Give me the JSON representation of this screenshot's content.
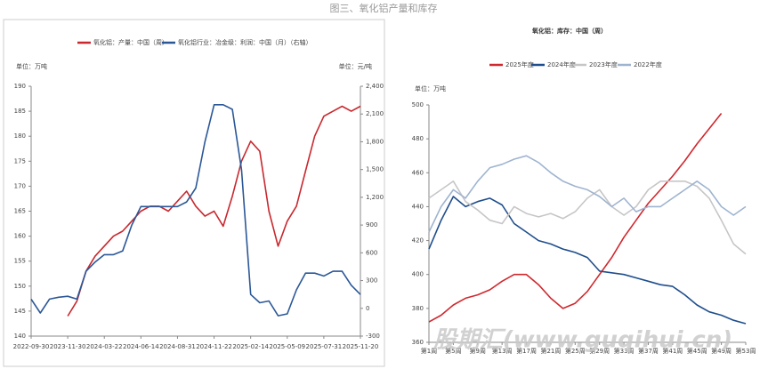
{
  "title": "图三、氧化铝产量和库存",
  "watermark": "股期汇(www.guqihui.cn)",
  "chart_data": [
    {
      "type": "line",
      "y_label": "单位：万吨",
      "y2_label": "单位：元/吨",
      "categories": [
        "2022-09-30",
        null,
        null,
        null,
        "2023-11-30",
        null,
        null,
        null,
        "2024-03-22",
        null,
        null,
        null,
        "2024-06-14",
        null,
        null,
        null,
        "2024-08-31",
        null,
        null,
        null,
        "2024-11-22",
        null,
        null,
        null,
        "2025-02-14",
        null,
        null,
        null,
        "2025-05-09",
        null,
        null,
        null,
        "2025-07-31",
        null,
        null,
        null,
        "2025-11-20"
      ],
      "series": [
        {
          "name": "氧化铝：产量：中国（周）",
          "color": "#c8282e",
          "values": [
            null,
            null,
            null,
            null,
            144,
            147,
            153,
            156,
            158,
            160,
            161,
            163,
            165,
            166,
            166,
            165,
            167,
            169,
            166,
            164,
            165,
            162,
            168,
            175,
            179,
            177,
            165,
            158,
            163,
            166,
            173,
            180,
            184,
            185,
            186,
            185,
            186
          ]
        },
        {
          "name": "氧化铝行业：冶金级：利润：中国（月）（右轴）",
          "color": "#2b5797",
          "axis": "y2",
          "values": [
            100,
            -50,
            100,
            120,
            130,
            100,
            400,
            500,
            580,
            580,
            620,
            900,
            1100,
            1100,
            1100,
            1100,
            1100,
            1150,
            1300,
            1800,
            2200,
            2200,
            2150,
            1500,
            150,
            60,
            80,
            -80,
            -60,
            200,
            380,
            380,
            350,
            400,
            400,
            250,
            150
          ]
        }
      ],
      "ylim": [
        140,
        190
      ],
      "yticks": [
        140,
        145,
        150,
        155,
        160,
        165,
        170,
        175,
        180,
        185,
        190
      ],
      "y2lim": [
        -300,
        2400
      ],
      "y2ticks": [
        -300,
        0,
        300,
        600,
        900,
        {
          "value": 1200,
          "label": "1,200"
        },
        {
          "value": 1500,
          "label": "1,500"
        },
        {
          "value": 1800,
          "label": "1,800"
        },
        {
          "value": 2100,
          "label": "2,100"
        },
        {
          "value": 2400,
          "label": "2,400"
        }
      ]
    },
    {
      "type": "line",
      "title": "氧化铝：库存：中国（周）",
      "y_label": "单位：万吨",
      "x": [
        1,
        3,
        5,
        7,
        9,
        11,
        13,
        15,
        17,
        19,
        21,
        23,
        25,
        27,
        29,
        31,
        33,
        35,
        37,
        39,
        41,
        43,
        45,
        47,
        49,
        51,
        53
      ],
      "xlim": [
        1,
        53
      ],
      "xticks": [
        {
          "value": 1,
          "label": "第1周"
        },
        {
          "value": 5,
          "label": "第5周"
        },
        {
          "value": 9,
          "label": "第9周"
        },
        {
          "value": 13,
          "label": "第13周"
        },
        {
          "value": 17,
          "label": "第17周"
        },
        {
          "value": 21,
          "label": "第21周"
        },
        {
          "value": 25,
          "label": "第25周"
        },
        {
          "value": 29,
          "label": "第29周"
        },
        {
          "value": 33,
          "label": "第33周"
        },
        {
          "value": 37,
          "label": "第37周"
        },
        {
          "value": 41,
          "label": "第41周"
        },
        {
          "value": 45,
          "label": "第45周"
        },
        {
          "value": 49,
          "label": "第49周"
        },
        {
          "value": 53,
          "label": "第53周"
        }
      ],
      "series": [
        {
          "name": "2025年度",
          "color": "#d0282e",
          "values": [
            372,
            376,
            382,
            386,
            388,
            391,
            396,
            400,
            400,
            394,
            386,
            380,
            383,
            390,
            400,
            410,
            422,
            432,
            442,
            450,
            458,
            467,
            477,
            486,
            495,
            null,
            null
          ]
        },
        {
          "name": "2024年度",
          "color": "#1f4e8c",
          "values": [
            415,
            432,
            446,
            440,
            443,
            445,
            441,
            430,
            425,
            420,
            418,
            415,
            413,
            410,
            402,
            401,
            400,
            398,
            396,
            394,
            393,
            388,
            382,
            378,
            376,
            373,
            371
          ]
        },
        {
          "name": "2023年度",
          "color": "#c6c6c6",
          "values": [
            445,
            450,
            455,
            443,
            438,
            432,
            430,
            440,
            436,
            434,
            436,
            433,
            437,
            445,
            450,
            440,
            435,
            440,
            450,
            455,
            455,
            455,
            452,
            445,
            432,
            418,
            412
          ]
        },
        {
          "name": "2022年度",
          "color": "#9fb4d0",
          "values": [
            425,
            440,
            450,
            445,
            455,
            463,
            465,
            468,
            470,
            466,
            460,
            455,
            452,
            450,
            446,
            440,
            445,
            437,
            440,
            440,
            445,
            450,
            455,
            450,
            440,
            435,
            440
          ]
        }
      ],
      "ylim": [
        360,
        500
      ],
      "yticks": [
        360,
        380,
        400,
        420,
        440,
        460,
        480,
        500
      ]
    }
  ]
}
